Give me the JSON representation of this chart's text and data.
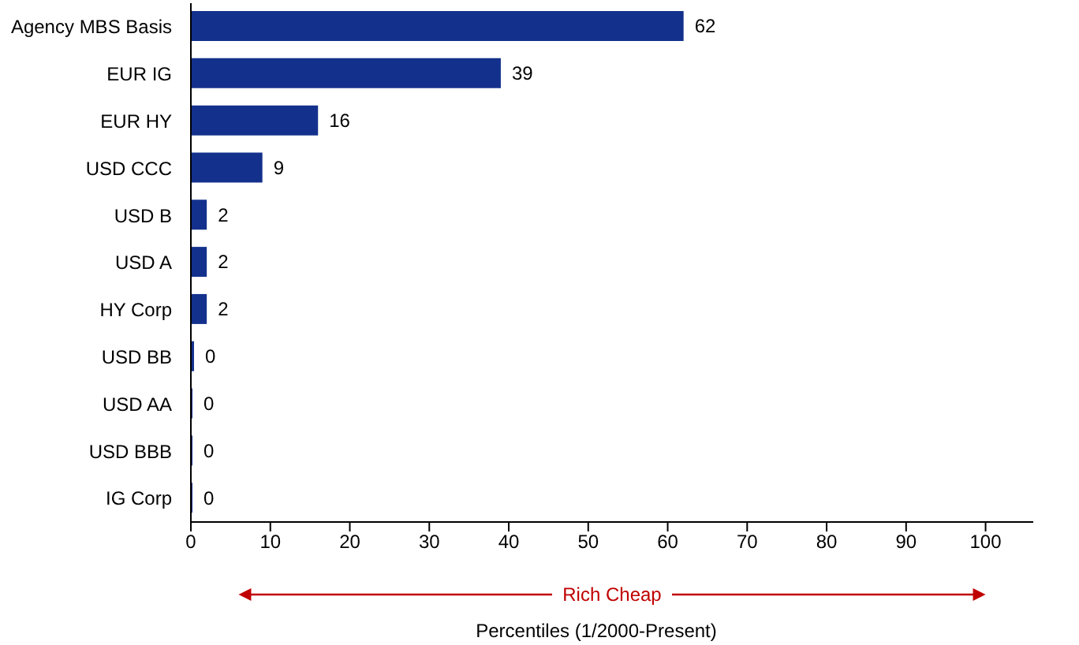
{
  "chart_data": {
    "type": "bar",
    "orientation": "horizontal",
    "categories": [
      "Agency MBS Basis",
      "EUR IG",
      "EUR HY",
      "USD CCC",
      "USD B",
      "USD A",
      "HY Corp",
      "USD BB",
      "USD AA",
      "USD BBB",
      "IG Corp"
    ],
    "values": [
      62,
      39,
      16,
      9,
      2,
      2,
      2,
      0.4,
      0.2,
      0.2,
      0.2
    ],
    "value_labels": [
      "62",
      "39",
      "16",
      "9",
      "2",
      "2",
      "2",
      "0",
      "0",
      "0",
      "0"
    ],
    "color": "#13318c",
    "xlim": [
      0,
      106
    ],
    "xticks": [
      0,
      10,
      20,
      30,
      40,
      50,
      60,
      70,
      80,
      90,
      100
    ],
    "xlabel": "Percentiles (1/2000-Present)",
    "annotations": [
      "Rich Cheap"
    ],
    "grid": false
  }
}
